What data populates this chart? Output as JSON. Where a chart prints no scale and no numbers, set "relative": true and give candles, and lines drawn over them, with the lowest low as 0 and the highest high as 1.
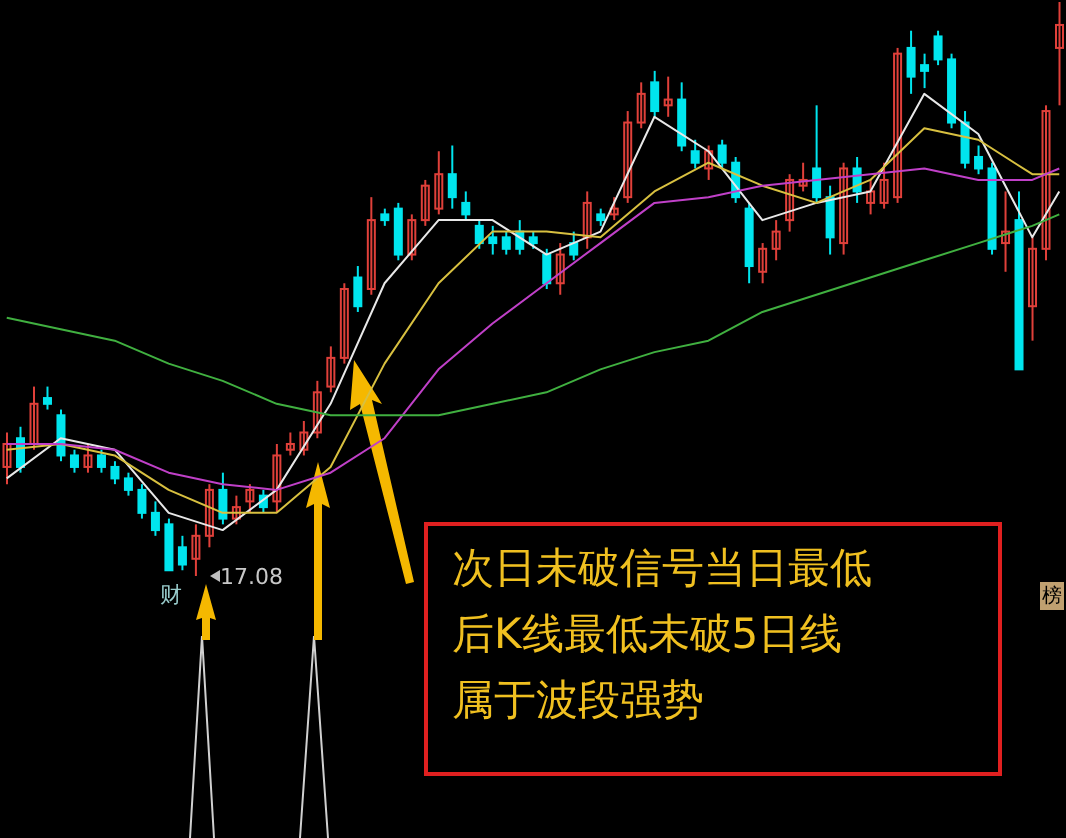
{
  "chart_data": {
    "type": "candlestick",
    "relative": true,
    "categories": [
      null,
      null,
      null,
      null,
      null,
      null,
      null,
      null,
      null,
      null,
      null,
      null,
      null,
      null,
      null,
      null,
      null,
      null,
      null,
      null,
      null,
      null,
      null,
      null,
      null,
      null,
      null,
      null,
      null,
      null,
      null,
      null,
      null,
      null,
      null,
      null,
      null,
      null,
      null,
      null,
      null,
      null,
      null,
      null,
      null,
      null,
      null,
      null,
      null,
      null,
      null,
      null,
      null,
      null,
      null,
      null,
      null,
      null,
      null,
      null,
      null,
      null,
      null,
      null,
      null,
      null,
      null,
      null,
      null,
      null,
      null,
      null,
      null,
      null,
      null,
      null,
      null,
      null,
      null
    ],
    "ohlc": [
      [
        0.19,
        0.25,
        0.16,
        0.23
      ],
      [
        0.24,
        0.26,
        0.18,
        0.19
      ],
      [
        0.23,
        0.33,
        0.22,
        0.3
      ],
      [
        0.31,
        0.33,
        0.29,
        0.3
      ],
      [
        0.28,
        0.29,
        0.2,
        0.21
      ],
      [
        0.21,
        0.22,
        0.18,
        0.19
      ],
      [
        0.19,
        0.23,
        0.18,
        0.21
      ],
      [
        0.21,
        0.22,
        0.18,
        0.19
      ],
      [
        0.19,
        0.2,
        0.16,
        0.17
      ],
      [
        0.17,
        0.18,
        0.14,
        0.15
      ],
      [
        0.15,
        0.16,
        0.1,
        0.11
      ],
      [
        0.11,
        0.13,
        0.07,
        0.08
      ],
      [
        0.09,
        0.1,
        0.01,
        0.01
      ],
      [
        0.05,
        0.07,
        0.01,
        0.02
      ],
      [
        0.03,
        0.09,
        0,
        0.07
      ],
      [
        0.07,
        0.16,
        0.05,
        0.15
      ],
      [
        0.15,
        0.18,
        0.09,
        0.1
      ],
      [
        0.1,
        0.14,
        0.09,
        0.12
      ],
      [
        0.13,
        0.16,
        0.11,
        0.15
      ],
      [
        0.14,
        0.15,
        0.11,
        0.12
      ],
      [
        0.13,
        0.23,
        0.11,
        0.21
      ],
      [
        0.22,
        0.25,
        0.21,
        0.23
      ],
      [
        0.22,
        0.27,
        0.21,
        0.25
      ],
      [
        0.25,
        0.34,
        0.24,
        0.32
      ],
      [
        0.33,
        0.4,
        0.32,
        0.38
      ],
      [
        0.38,
        0.51,
        0.37,
        0.5
      ],
      [
        0.52,
        0.54,
        0.46,
        0.47
      ],
      [
        0.5,
        0.66,
        0.49,
        0.62
      ],
      [
        0.63,
        0.64,
        0.61,
        0.62
      ],
      [
        0.64,
        0.65,
        0.55,
        0.56
      ],
      [
        0.56,
        0.63,
        0.55,
        0.62
      ],
      [
        0.62,
        0.69,
        0.61,
        0.68
      ],
      [
        0.64,
        0.74,
        0.63,
        0.7
      ],
      [
        0.7,
        0.75,
        0.64,
        0.66
      ],
      [
        0.65,
        0.67,
        0.62,
        0.63
      ],
      [
        0.61,
        0.62,
        0.57,
        0.58
      ],
      [
        0.59,
        0.61,
        0.56,
        0.58
      ],
      [
        0.59,
        0.6,
        0.56,
        0.57
      ],
      [
        0.6,
        0.62,
        0.56,
        0.57
      ],
      [
        0.59,
        0.6,
        0.57,
        0.58
      ],
      [
        0.56,
        0.57,
        0.5,
        0.51
      ],
      [
        0.51,
        0.58,
        0.49,
        0.56
      ],
      [
        0.58,
        0.6,
        0.55,
        0.56
      ],
      [
        0.59,
        0.67,
        0.57,
        0.65
      ],
      [
        0.63,
        0.64,
        0.61,
        0.62
      ],
      [
        0.63,
        0.66,
        0.62,
        0.64
      ],
      [
        0.66,
        0.81,
        0.65,
        0.79
      ],
      [
        0.79,
        0.86,
        0.78,
        0.84
      ],
      [
        0.86,
        0.88,
        0.8,
        0.81
      ],
      [
        0.82,
        0.87,
        0.8,
        0.83
      ],
      [
        0.83,
        0.86,
        0.74,
        0.75
      ],
      [
        0.74,
        0.76,
        0.71,
        0.72
      ],
      [
        0.71,
        0.75,
        0.69,
        0.74
      ],
      [
        0.75,
        0.76,
        0.71,
        0.72
      ],
      [
        0.72,
        0.73,
        0.65,
        0.66
      ],
      [
        0.64,
        0.65,
        0.51,
        0.54
      ],
      [
        0.53,
        0.58,
        0.51,
        0.57
      ],
      [
        0.57,
        0.62,
        0.55,
        0.6
      ],
      [
        0.62,
        0.7,
        0.6,
        0.69
      ],
      [
        0.68,
        0.72,
        0.67,
        0.69
      ],
      [
        0.71,
        0.82,
        0.65,
        0.66
      ],
      [
        0.66,
        0.68,
        0.56,
        0.59
      ],
      [
        0.58,
        0.72,
        0.56,
        0.71
      ],
      [
        0.71,
        0.73,
        0.65,
        0.67
      ],
      [
        0.65,
        0.69,
        0.63,
        0.67
      ],
      [
        0.65,
        0.72,
        0.64,
        0.69
      ],
      [
        0.66,
        0.92,
        0.65,
        0.91
      ],
      [
        0.92,
        0.95,
        0.84,
        0.87
      ],
      [
        0.89,
        0.91,
        0.85,
        0.88
      ],
      [
        0.94,
        0.95,
        0.89,
        0.9
      ],
      [
        0.9,
        0.91,
        0.78,
        0.79
      ],
      [
        0.79,
        0.81,
        0.71,
        0.72
      ],
      [
        0.73,
        0.75,
        0.7,
        0.71
      ],
      [
        0.71,
        0.72,
        0.56,
        0.57
      ],
      [
        0.58,
        0.67,
        0.53,
        0.6
      ],
      [
        0.62,
        0.67,
        0.36,
        0.36
      ],
      [
        0.47,
        0.59,
        0.41,
        0.57
      ],
      [
        0.57,
        0.82,
        0.55,
        0.81
      ],
      [
        0.92,
        1,
        0.82,
        0.96
      ]
    ],
    "colors": [
      "#e0403a",
      "#00e5ee",
      "#e0403a",
      "#00e5ee",
      "#00e5ee",
      "#00e5ee",
      "#e0403a",
      "#00e5ee",
      "#00e5ee",
      "#00e5ee",
      "#00e5ee",
      "#00e5ee",
      "#00e5ee",
      "#00e5ee",
      "#e0403a",
      "#e0403a",
      "#00e5ee",
      "#e0403a",
      "#e0403a",
      "#00e5ee",
      "#e0403a",
      "#e0403a",
      "#e0403a",
      "#e0403a",
      "#e0403a",
      "#e0403a",
      "#00e5ee",
      "#e0403a",
      "#00e5ee",
      "#00e5ee",
      "#e0403a",
      "#e0403a",
      "#e0403a",
      "#00e5ee",
      "#00e5ee",
      "#00e5ee",
      "#00e5ee",
      "#00e5ee",
      "#00e5ee",
      "#00e5ee",
      "#00e5ee",
      "#e0403a",
      "#00e5ee",
      "#e0403a",
      "#00e5ee",
      "#e0403a",
      "#e0403a",
      "#e0403a",
      "#00e5ee",
      "#e0403a",
      "#00e5ee",
      "#00e5ee",
      "#e0403a",
      "#00e5ee",
      "#00e5ee",
      "#00e5ee",
      "#e0403a",
      "#e0403a",
      "#e0403a",
      "#e0403a",
      "#00e5ee",
      "#00e5ee",
      "#e0403a",
      "#00e5ee",
      "#e0403a",
      "#e0403a",
      "#e0403a",
      "#00e5ee",
      "#00e5ee",
      "#00e5ee",
      "#00e5ee",
      "#00e5ee",
      "#00e5ee",
      "#00e5ee",
      "#e0403a",
      "#00e5ee",
      "#e0403a",
      "#e0403a",
      "#e0403a"
    ],
    "series": [
      {
        "type": "line",
        "color": "#e8e8e8",
        "values": [
          0.17,
          null,
          null,
          null,
          0.24,
          null,
          null,
          null,
          0.22,
          null,
          null,
          null,
          0.11,
          null,
          null,
          null,
          0.08,
          null,
          null,
          null,
          0.15,
          null,
          null,
          null,
          0.3,
          null,
          null,
          null,
          0.51,
          null,
          null,
          null,
          0.62,
          null,
          null,
          null,
          0.62,
          null,
          null,
          null,
          0.56,
          null,
          null,
          null,
          0.6,
          null,
          null,
          null,
          0.8,
          null,
          null,
          null,
          0.74,
          null,
          null,
          null,
          0.62,
          null,
          null,
          null,
          0.65,
          null,
          null,
          null,
          0.67,
          null,
          null,
          null,
          0.84,
          null,
          null,
          null,
          0.77,
          null,
          null,
          null,
          0.59,
          null,
          0.67
        ]
      },
      {
        "type": "line",
        "color": "#d8c040",
        "values": [
          0.22,
          null,
          null,
          null,
          0.23,
          null,
          null,
          null,
          0.21,
          null,
          null,
          null,
          0.15,
          null,
          null,
          null,
          0.11,
          null,
          null,
          null,
          0.11,
          null,
          null,
          null,
          0.19,
          null,
          null,
          null,
          0.37,
          null,
          null,
          null,
          0.51,
          null,
          null,
          null,
          0.6,
          null,
          null,
          null,
          0.6,
          null,
          null,
          null,
          0.59,
          null,
          null,
          null,
          0.67,
          null,
          null,
          null,
          0.72,
          null,
          null,
          null,
          0.68,
          null,
          null,
          null,
          0.65,
          null,
          null,
          null,
          0.69,
          null,
          null,
          null,
          0.78,
          null,
          null,
          null,
          0.76,
          null,
          null,
          null,
          0.7,
          null,
          0.7
        ]
      },
      {
        "type": "line",
        "color": "#c040c8",
        "values": [
          0.23,
          null,
          null,
          null,
          0.23,
          null,
          null,
          null,
          0.22,
          null,
          null,
          null,
          0.18,
          null,
          null,
          null,
          0.16,
          null,
          null,
          null,
          0.15,
          null,
          null,
          null,
          0.18,
          null,
          null,
          null,
          0.24,
          null,
          null,
          null,
          0.36,
          null,
          null,
          null,
          0.44,
          null,
          null,
          null,
          0.51,
          null,
          null,
          null,
          0.58,
          null,
          null,
          null,
          0.65,
          null,
          null,
          null,
          0.66,
          null,
          null,
          null,
          0.68,
          null,
          null,
          null,
          0.69,
          null,
          null,
          null,
          0.7,
          null,
          null,
          null,
          0.71,
          null,
          null,
          null,
          0.69,
          null,
          null,
          null,
          0.69,
          null,
          0.71
        ]
      },
      {
        "type": "line",
        "color": "#40b040",
        "values": [
          0.45,
          null,
          null,
          null,
          0.43,
          null,
          null,
          null,
          0.41,
          null,
          null,
          null,
          0.37,
          null,
          null,
          null,
          0.34,
          null,
          null,
          null,
          0.3,
          null,
          null,
          null,
          0.28,
          null,
          null,
          null,
          0.28,
          null,
          null,
          null,
          0.28,
          null,
          null,
          null,
          0.3,
          null,
          null,
          null,
          0.32,
          null,
          null,
          null,
          0.36,
          null,
          null,
          null,
          0.39,
          null,
          null,
          null,
          0.41,
          null,
          null,
          null,
          0.46,
          null,
          null,
          null,
          0.49,
          null,
          null,
          null,
          0.52,
          null,
          null,
          null,
          0.55,
          null,
          null,
          null,
          0.58,
          null,
          null,
          null,
          0.61,
          null,
          0.63
        ]
      }
    ],
    "annotations": [
      "次日未破信号当日最低",
      "后K线最低未破5日线",
      "属于波段强势",
      "17.08",
      "财",
      "榜"
    ]
  }
}
